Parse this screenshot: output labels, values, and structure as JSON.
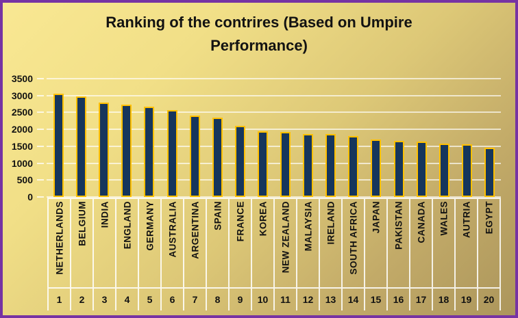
{
  "frame": {
    "border_color": "#7633A3"
  },
  "background": {
    "gradient_start": "#F9E893",
    "gradient_end": "#AB955B"
  },
  "chart_data": {
    "type": "bar",
    "title": "Ranking of the contrires (Based on Umpire Performance)",
    "categories": [
      "NETHERLANDS",
      "BELGIUM",
      "INDIA",
      "ENGLAND",
      "GERMANY",
      "AUSTRALIA",
      "ARGENTINA",
      "SPAIN",
      "FRANCE",
      "KOREA",
      "NEW ZEALAND",
      "MALAYSIA",
      "IRELAND",
      "SOUTH AFRICA",
      "JAPAN",
      "PAKISTAN",
      "CANADA",
      "WALES",
      "AUTRIA",
      "EGYPT"
    ],
    "rank_labels": [
      "1",
      "2",
      "3",
      "4",
      "5",
      "6",
      "7",
      "8",
      "9",
      "10",
      "11",
      "12",
      "13",
      "14",
      "15",
      "16",
      "17",
      "18",
      "19",
      "20"
    ],
    "values": [
      3060,
      2980,
      2800,
      2740,
      2680,
      2570,
      2410,
      2350,
      2100,
      1940,
      1930,
      1870,
      1860,
      1800,
      1700,
      1660,
      1640,
      1580,
      1550,
      1450
    ],
    "xlabel": "",
    "ylabel": "",
    "ylim": [
      0,
      3500
    ],
    "ytick_step": 500,
    "ytick_labels": [
      "3500",
      "3000",
      "2500",
      "2000",
      "1500",
      "1000",
      "500",
      "0"
    ],
    "grid": true,
    "legend": "none",
    "bar_fill": "#16365C",
    "bar_outline": "#FFC000",
    "gridline_color": "rgba(255,255,255,0.65)",
    "label_grid_color": "rgba(255,255,255,0.85)",
    "text_color": "#121212"
  }
}
